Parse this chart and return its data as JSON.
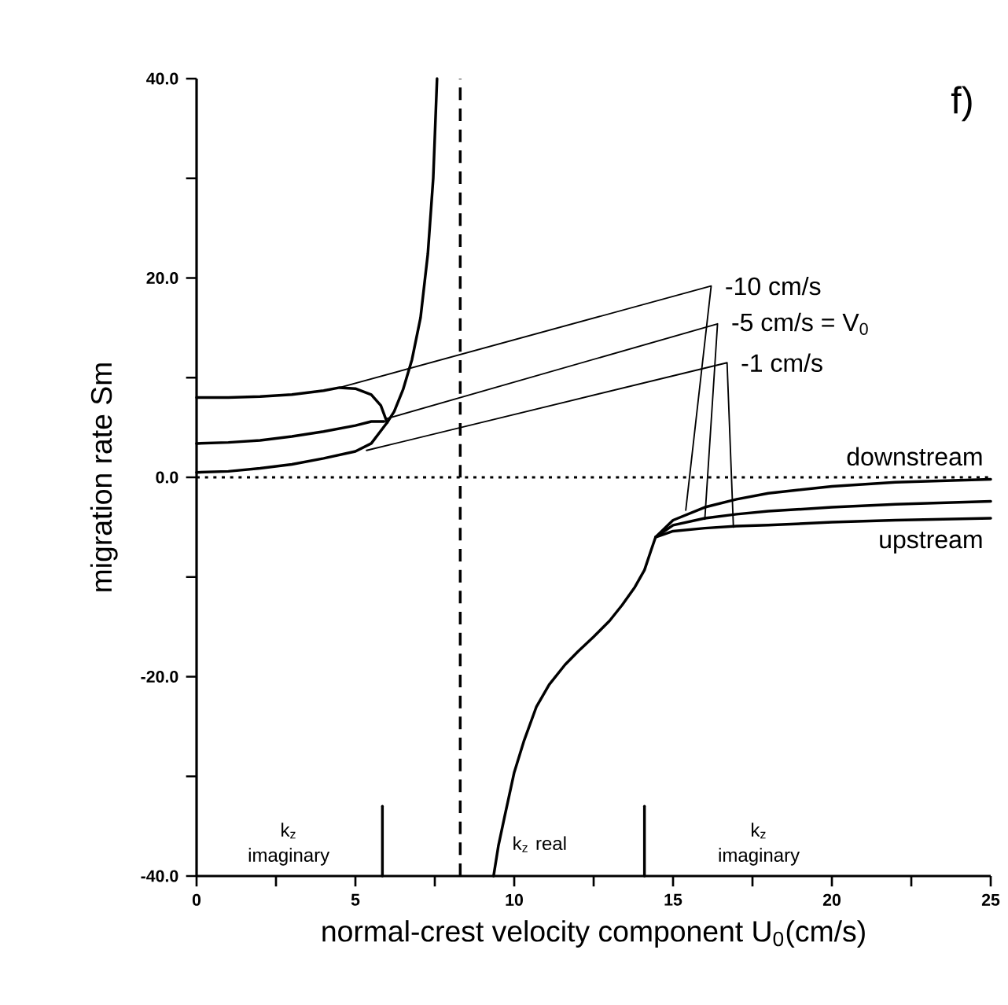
{
  "chart_data": {
    "type": "line",
    "xlabel": "normal-crest velocity component U$_{0}$(cm/s)",
    "ylabel": "migration rate Sm",
    "annotations": [
      "f)",
      "k$_{z}$ imaginary",
      "k$_{z}$ real",
      "k$_{z}$ imaginary"
    ],
    "xlim": [
      0,
      25
    ],
    "ylim": [
      -40,
      40
    ],
    "xticks": [
      0,
      {
        "value": 2.5,
        "label": null
      },
      5,
      {
        "value": 7.5,
        "label": null
      },
      10,
      {
        "value": 12.5,
        "label": null
      },
      15,
      {
        "value": 17.5,
        "label": null
      },
      20,
      {
        "value": 22.5,
        "label": null
      },
      25
    ],
    "yticks": [
      {
        "value": -40,
        "label": "-40.0"
      },
      {
        "value": -30,
        "label": null
      },
      {
        "value": -20,
        "label": "-20.0"
      },
      {
        "value": -10,
        "label": null
      },
      {
        "value": 0,
        "label": "0.0"
      },
      {
        "value": 10,
        "label": null
      },
      {
        "value": 20,
        "label": "20.0"
      },
      {
        "value": 30,
        "label": null
      },
      {
        "value": 40,
        "label": "40.0"
      }
    ],
    "grid": false,
    "legend": false,
    "marker": "none",
    "line_style": "solid",
    "series": [
      {
        "color": "#000000",
        "x": [
          0,
          1,
          2,
          3,
          4,
          4.5,
          5,
          5.5,
          5.8,
          6.0
        ],
        "values": [
          8.0,
          8.0,
          8.1,
          8.3,
          8.7,
          9.0,
          8.9,
          8.3,
          7.2,
          5.5
        ]
      },
      {
        "color": "#000000",
        "x": [
          0,
          1,
          2,
          3,
          4,
          5,
          5.5,
          5.9
        ],
        "values": [
          3.4,
          3.5,
          3.7,
          4.1,
          4.6,
          5.2,
          5.6,
          5.6
        ]
      },
      {
        "color": "#000000",
        "x": [
          0,
          1,
          2,
          3,
          4,
          5,
          5.5,
          6.0,
          6.22,
          6.5,
          6.78,
          7.05,
          7.28,
          7.45,
          7.57
        ],
        "values": [
          0.5,
          0.6,
          0.9,
          1.3,
          1.9,
          2.6,
          3.4,
          5.5,
          6.6,
          8.8,
          11.8,
          16.0,
          22.4,
          30,
          40
        ]
      },
      {
        "name": "-10 cm/s",
        "color": "#000000",
        "x": [
          4.5,
          16.2,
          15.4
        ],
        "values": [
          9.0,
          19.2,
          -3.3
        ]
      },
      {
        "name": "-5 cm/s = V$_{0}$",
        "color": "#000000",
        "x": [
          6.0,
          16.4,
          16.0
        ],
        "values": [
          5.9,
          15.4,
          -4.2
        ]
      },
      {
        "name": "-1 cm/s",
        "color": "#000000",
        "x": [
          5.35,
          16.7,
          16.9
        ],
        "values": [
          2.7,
          11.5,
          -5.0
        ]
      },
      {
        "color": "#000000",
        "x": [
          9.35,
          9.5,
          9.7,
          10.0,
          10.3,
          10.7,
          11.1,
          11.6,
          12.0,
          12.5,
          13.0,
          13.4,
          13.8,
          14.1,
          14.3,
          14.45,
          15,
          16,
          17,
          18,
          20,
          22,
          25
        ],
        "values": [
          -40,
          -37,
          -34,
          -29.6,
          -26.5,
          -23,
          -20.8,
          -18.8,
          -17.5,
          -16,
          -14.4,
          -12.8,
          -11.0,
          -9.3,
          -7.4,
          -6.0,
          -4.8,
          -4.1,
          -3.7,
          -3.4,
          -3.0,
          -2.7,
          -2.4
        ]
      },
      {
        "name": "downstream",
        "color": "#000000",
        "x": [
          14.45,
          15,
          16,
          17,
          18,
          20,
          22,
          25
        ],
        "values": [
          -6.0,
          -4.3,
          -3.0,
          -2.2,
          -1.6,
          -0.9,
          -0.5,
          -0.2
        ]
      },
      {
        "name": "upstream",
        "color": "#000000",
        "x": [
          14.45,
          15,
          16,
          17,
          18,
          20,
          22,
          25
        ],
        "values": [
          -6.0,
          -5.4,
          -5.1,
          -4.9,
          -4.8,
          -4.5,
          -4.3,
          -4.1
        ]
      },
      {
        "color": "#000000",
        "x": [
          5.85,
          5.85
        ],
        "values": [
          -40,
          -33
        ]
      },
      {
        "color": "#000000",
        "x": [
          14.1,
          14.1
        ],
        "values": [
          -40,
          -33
        ]
      }
    ],
    "ref_lines": [
      {
        "axis": "x",
        "value": 8.3,
        "line_style": "dashed"
      },
      {
        "axis": "y",
        "value": 0,
        "line_style": "dotted"
      }
    ]
  }
}
